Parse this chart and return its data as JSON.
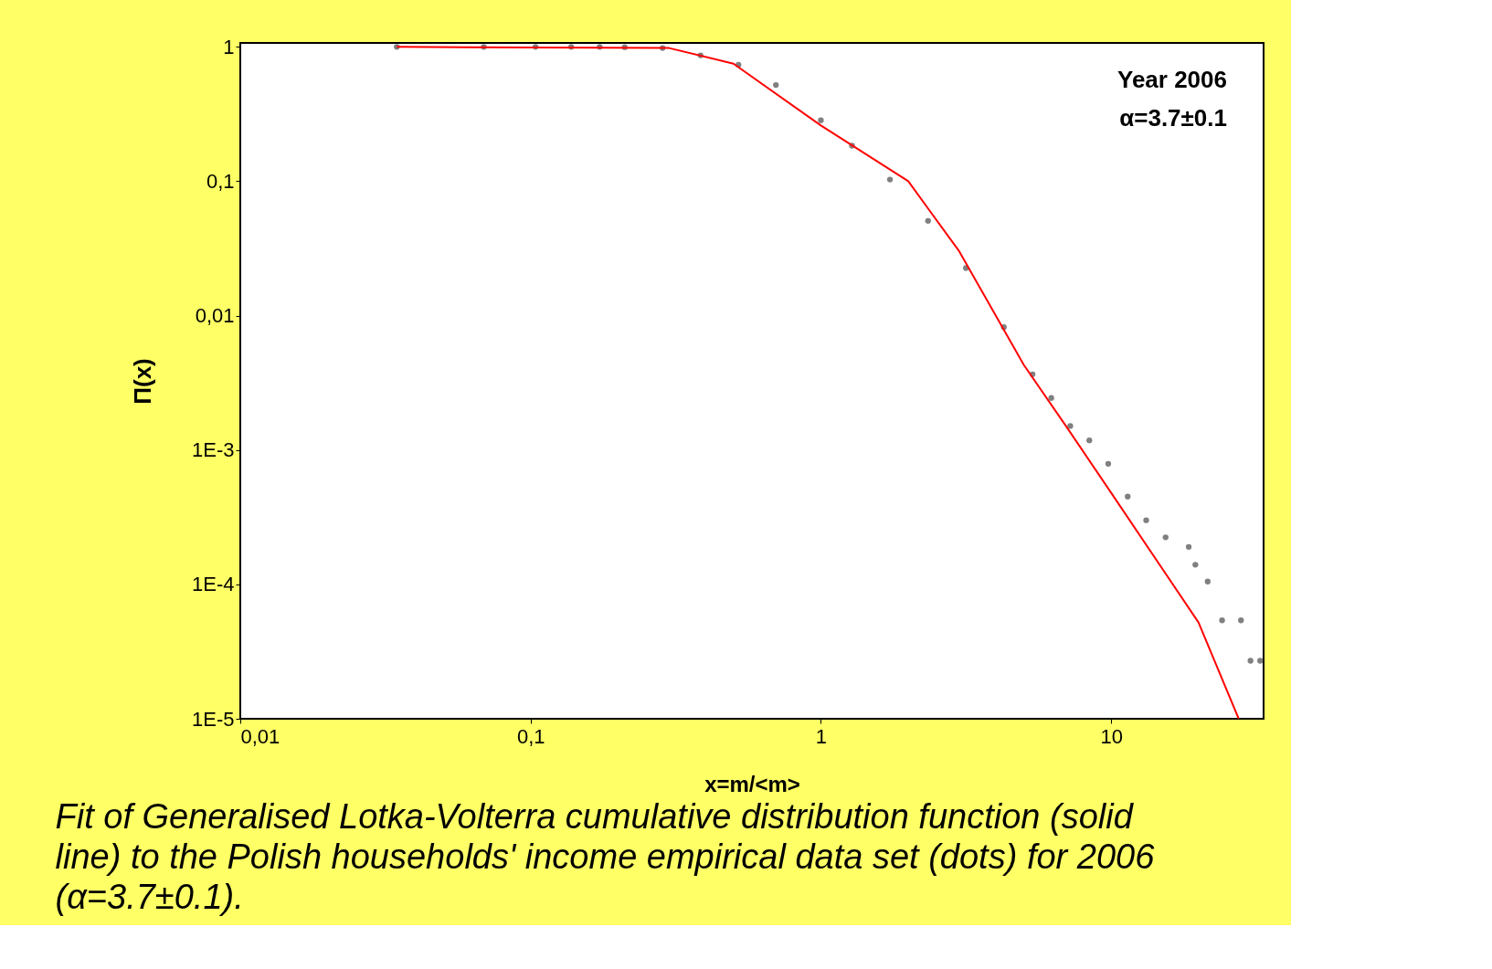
{
  "chart_data": {
    "type": "scatter",
    "xlabel": "x=m/<m>",
    "ylabel": "Π(x)",
    "log": "xy",
    "grid": false,
    "xlim": [
      0.01,
      33.5
    ],
    "ylim": [
      1e-05,
      1.07
    ],
    "xticks": [
      {
        "value": 0.01,
        "label": "0,01"
      },
      {
        "value": 0.1,
        "label": "0,1"
      },
      1,
      10
    ],
    "yticks": [
      {
        "value": 1e-05,
        "label": "1E-5"
      },
      {
        "value": 0.0001,
        "label": "1E-4"
      },
      {
        "value": 0.001,
        "label": "1E-3"
      },
      {
        "value": 0.01,
        "label": "0,01"
      },
      {
        "value": 0.1,
        "label": "0,1"
      },
      1
    ],
    "series": [
      {
        "color": "#808080",
        "marker": "circle",
        "x": [
          0.0346,
          0.069,
          0.104,
          0.138,
          0.173,
          0.211,
          0.285,
          0.385,
          0.52,
          0.7,
          1.0,
          1.28,
          1.73,
          2.34,
          3.16,
          4.27,
          5.36,
          6.22,
          7.23,
          8.41,
          9.77,
          11.4,
          13.2,
          15.4,
          18.5,
          19.5,
          21.5,
          24.1,
          28.0,
          30.2,
          32.6
        ],
        "values": [
          1,
          1,
          1,
          1,
          1,
          0.995,
          0.98,
          0.865,
          0.736,
          0.52,
          0.284,
          0.184,
          0.103,
          0.0507,
          0.0226,
          0.0082,
          0.00366,
          0.00244,
          0.00151,
          0.00118,
          0.00079,
          0.00045,
          0.0003,
          0.000224,
          0.00019,
          0.00014,
          0.000105,
          5.4e-05,
          5.4e-05,
          2.7e-05,
          2.7e-05
        ]
      },
      {
        "type": "line",
        "color": "#ff0000",
        "line_style": "solid",
        "x": [
          0.0346,
          0.3,
          0.5,
          1,
          2,
          3,
          5,
          7,
          10,
          20,
          27.5
        ],
        "values": [
          1,
          0.98,
          0.75,
          0.26,
          0.1,
          0.03,
          0.0043,
          0.0015,
          0.00048,
          5.2e-05,
          1e-05
        ]
      }
    ],
    "annotations": [
      "Year 2006",
      "α=3.7±0.1",
      "Fit of Generalised Lotka-Volterra cumulative distribution function (solid line) to the Polish households' income empirical data set (dots) for 2006 (α=3.7±0.1)."
    ]
  }
}
